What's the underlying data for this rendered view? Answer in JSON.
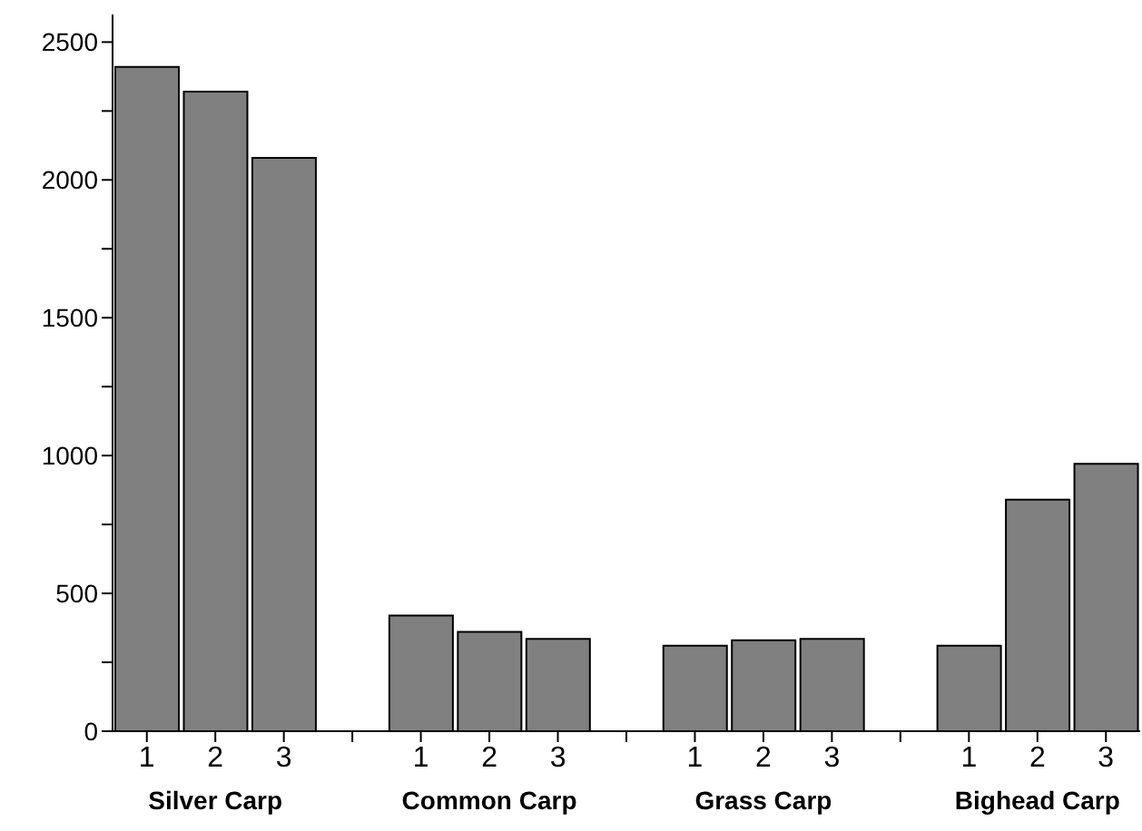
{
  "chart_data": {
    "type": "bar",
    "categories": [
      "1",
      "2",
      "3",
      null,
      "1",
      "2",
      "3",
      null,
      "1",
      "2",
      "3",
      null,
      "1",
      "2",
      "3"
    ],
    "values": [
      2410,
      2320,
      2080,
      null,
      420,
      360,
      335,
      null,
      310,
      330,
      335,
      null,
      310,
      840,
      970
    ],
    "color": "#808080",
    "ylim": [
      0,
      2600
    ],
    "yticks": [
      0,
      {
        "value": 250,
        "label": null
      },
      500,
      {
        "value": 750,
        "label": null
      },
      1000,
      {
        "value": 1250,
        "label": null
      },
      1500,
      {
        "value": 1750,
        "label": null
      },
      2000,
      {
        "value": 2250,
        "label": null
      },
      2500
    ],
    "annotations": [
      "Silver Carp",
      "Common Carp",
      "Grass Carp",
      "Bighead Carp"
    ]
  }
}
